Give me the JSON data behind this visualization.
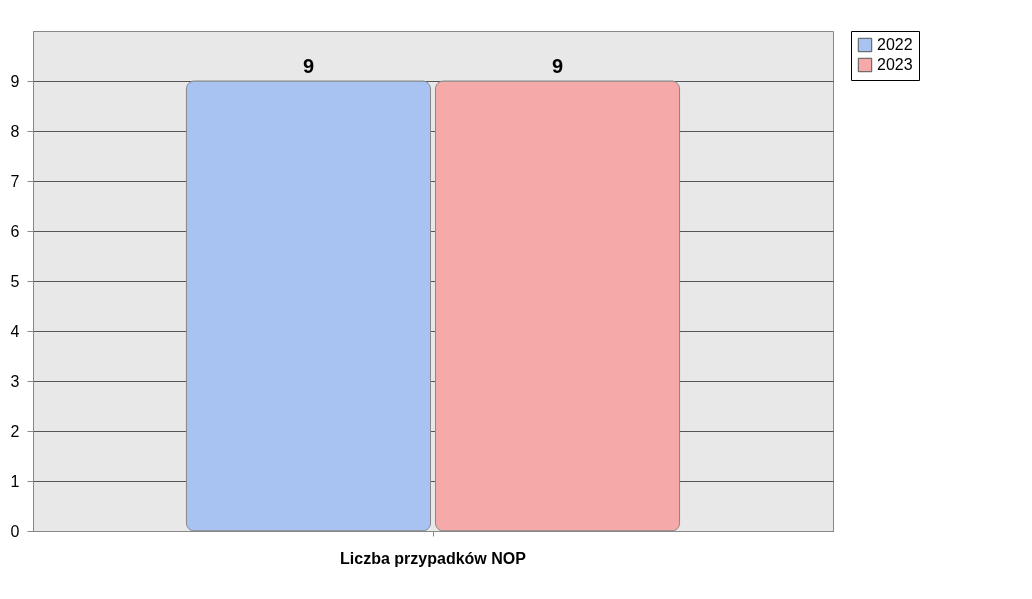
{
  "chart_data": {
    "type": "bar",
    "categories": [
      "Liczba przypadków NOP"
    ],
    "series": [
      {
        "name": "2022",
        "color": "#a8c2f2",
        "values": [
          9
        ]
      },
      {
        "name": "2023",
        "color": "#f5a9a9",
        "values": [
          9
        ]
      }
    ],
    "ylim": [
      0,
      10
    ],
    "yticks": [
      0,
      1,
      2,
      3,
      4,
      5,
      6,
      7,
      8,
      9
    ],
    "grid": "y",
    "legend": "right",
    "data_labels": true
  }
}
